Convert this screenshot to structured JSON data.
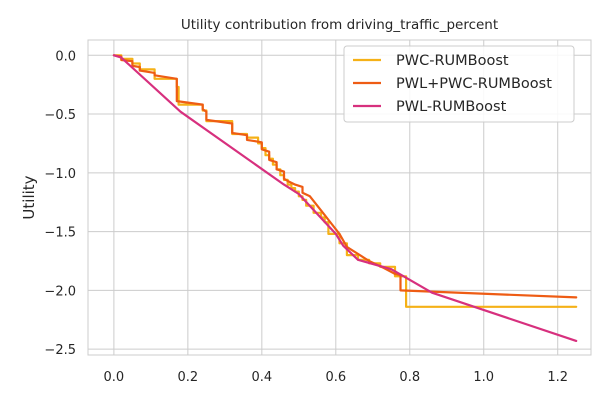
{
  "chart_data": {
    "type": "line",
    "title": "Utility contribution from driving_traffic_percent",
    "xlabel": "",
    "ylabel": "Utility",
    "xlim": [
      -0.07,
      1.29
    ],
    "ylim": [
      -2.55,
      0.13
    ],
    "xticks": [
      0.0,
      0.2,
      0.4,
      0.6,
      0.8,
      1.0,
      1.2
    ],
    "xtick_labels": [
      "0.0",
      "0.2",
      "0.4",
      "0.6",
      "0.8",
      "1.0",
      "1.2"
    ],
    "yticks": [
      0.0,
      -0.5,
      -1.0,
      -1.5,
      -2.0,
      -2.5
    ],
    "ytick_labels": [
      "0.0",
      "−0.5",
      "−1.0",
      "−1.5",
      "−2.0",
      "−2.5"
    ],
    "grid": true,
    "legend_position": "top-right",
    "series": [
      {
        "name": "PWC-RUMBoost",
        "color": "#F5B117",
        "step": true,
        "x": [
          0.0,
          0.02,
          0.05,
          0.07,
          0.11,
          0.17,
          0.175,
          0.24,
          0.25,
          0.32,
          0.36,
          0.39,
          0.4,
          0.41,
          0.42,
          0.43,
          0.44,
          0.45,
          0.46,
          0.47,
          0.48,
          0.49,
          0.5,
          0.51,
          0.52,
          0.54,
          0.56,
          0.57,
          0.58,
          0.61,
          0.63,
          0.66,
          0.69,
          0.72,
          0.76,
          0.79,
          1.25
        ],
        "y": [
          0.0,
          -0.03,
          -0.07,
          -0.12,
          -0.2,
          -0.27,
          -0.42,
          -0.47,
          -0.56,
          -0.67,
          -0.7,
          -0.75,
          -0.79,
          -0.85,
          -0.88,
          -0.93,
          -0.97,
          -1.02,
          -1.06,
          -1.1,
          -1.13,
          -1.16,
          -1.2,
          -1.23,
          -1.28,
          -1.34,
          -1.38,
          -1.42,
          -1.52,
          -1.6,
          -1.7,
          -1.74,
          -1.77,
          -1.8,
          -1.88,
          -2.14,
          -2.14
        ]
      },
      {
        "name": "PWL+PWC-RUMBoost",
        "color": "#EE5C14",
        "step": false,
        "x": [
          0.0,
          0.02,
          0.02,
          0.05,
          0.05,
          0.07,
          0.07,
          0.11,
          0.11,
          0.17,
          0.17,
          0.24,
          0.24,
          0.25,
          0.25,
          0.32,
          0.32,
          0.36,
          0.36,
          0.4,
          0.4,
          0.42,
          0.42,
          0.44,
          0.44,
          0.46,
          0.46,
          0.47,
          0.49,
          0.51,
          0.51,
          0.53,
          0.55,
          0.57,
          0.59,
          0.61,
          0.63,
          0.66,
          0.69,
          0.73,
          0.76,
          0.775,
          0.775,
          1.25
        ],
        "y": [
          0.0,
          -0.01,
          -0.04,
          -0.05,
          -0.09,
          -0.1,
          -0.13,
          -0.15,
          -0.17,
          -0.2,
          -0.39,
          -0.42,
          -0.46,
          -0.48,
          -0.55,
          -0.58,
          -0.66,
          -0.68,
          -0.72,
          -0.74,
          -0.8,
          -0.82,
          -0.89,
          -0.91,
          -0.97,
          -0.99,
          -1.05,
          -1.07,
          -1.1,
          -1.12,
          -1.17,
          -1.2,
          -1.28,
          -1.36,
          -1.44,
          -1.52,
          -1.63,
          -1.69,
          -1.75,
          -1.81,
          -1.86,
          -1.87,
          -2.0,
          -2.06
        ]
      },
      {
        "name": "PWL-RUMBoost",
        "color": "#D7307E",
        "step": false,
        "x": [
          0.0,
          0.02,
          0.18,
          0.46,
          0.5,
          0.6,
          0.62,
          0.66,
          0.75,
          0.86,
          1.25
        ],
        "y": [
          0.0,
          -0.02,
          -0.48,
          -1.1,
          -1.18,
          -1.52,
          -1.62,
          -1.74,
          -1.82,
          -2.02,
          -2.43
        ]
      }
    ]
  }
}
